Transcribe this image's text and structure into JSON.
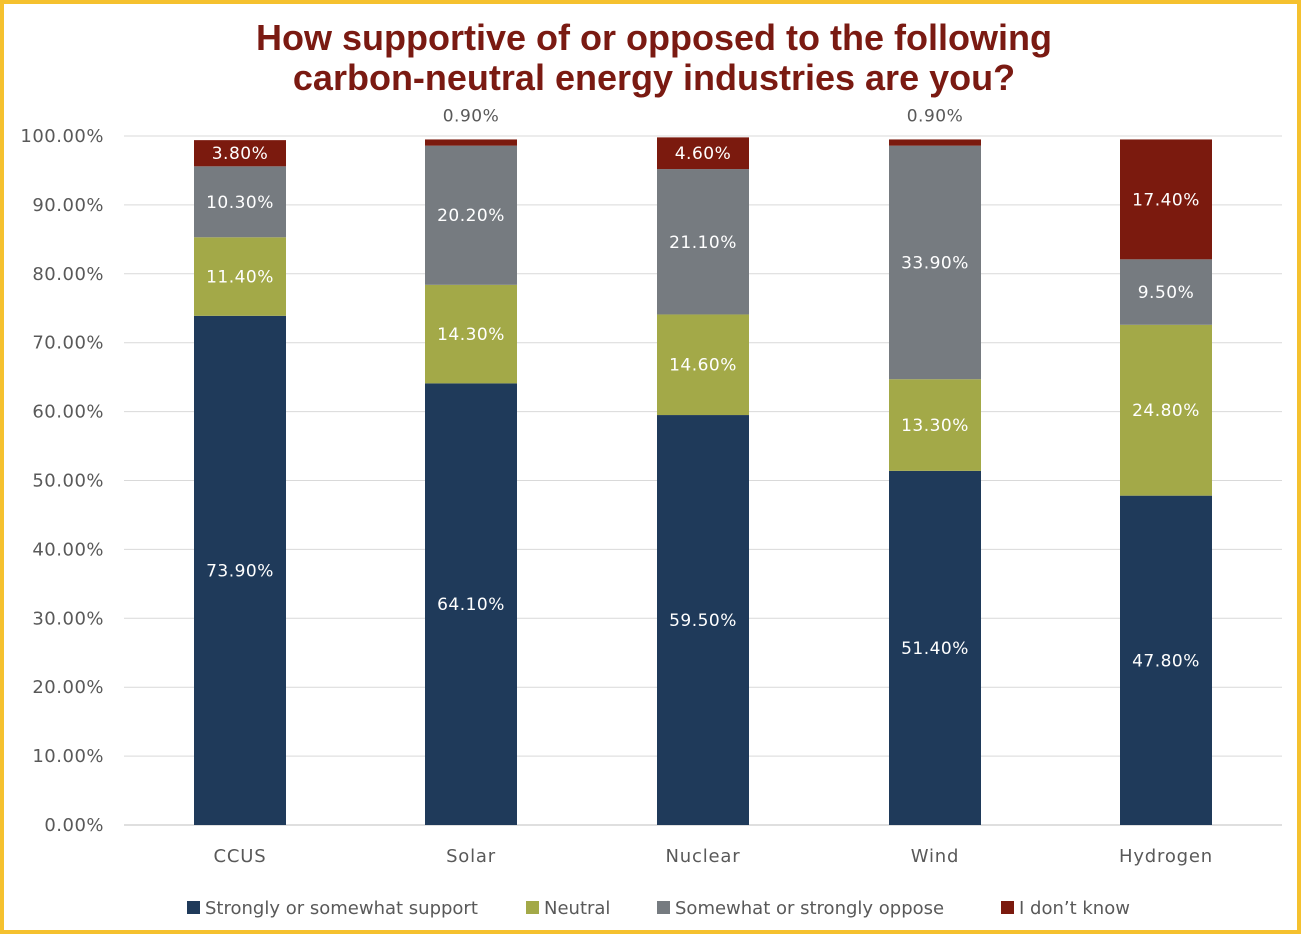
{
  "chart_data": {
    "type": "bar",
    "stacked": true,
    "title": "How supportive of or opposed to the following carbon-neutral energy industries are you?",
    "title_lines": [
      "How supportive of or opposed to the following",
      "carbon-neutral energy industries are you?"
    ],
    "categories": [
      "CCUS",
      "Solar",
      "Nuclear",
      "Wind",
      "Hydrogen"
    ],
    "series": [
      {
        "name": "Strongly or somewhat support",
        "color": "#1f3a5a",
        "values": [
          73.9,
          64.1,
          59.5,
          51.4,
          47.8
        ],
        "labels": [
          "73.90%",
          "64.10%",
          "59.50%",
          "51.40%",
          "47.80%"
        ]
      },
      {
        "name": "Neutral",
        "color": "#a3a948",
        "values": [
          11.4,
          14.3,
          14.6,
          13.3,
          24.8
        ],
        "labels": [
          "11.40%",
          "14.30%",
          "14.60%",
          "13.30%",
          "24.80%"
        ]
      },
      {
        "name": "Somewhat or strongly oppose",
        "color": "#767b80",
        "values": [
          10.3,
          20.2,
          21.1,
          33.9,
          9.5
        ],
        "labels": [
          "10.30%",
          "20.20%",
          "21.10%",
          "33.90%",
          "9.50%"
        ]
      },
      {
        "name": "I don't know",
        "color": "#7b1a0e",
        "values": [
          3.8,
          0.9,
          4.6,
          0.9,
          17.4
        ],
        "labels": [
          "3.80%",
          "0.90%",
          "4.60%",
          "0.90%",
          "17.40%"
        ]
      }
    ],
    "ylim": [
      0,
      100
    ],
    "yticks": [
      0,
      10,
      20,
      30,
      40,
      50,
      60,
      70,
      80,
      90,
      100
    ],
    "ytick_labels": [
      "0.00%",
      "10.00%",
      "20.00%",
      "30.00%",
      "40.00%",
      "50.00%",
      "60.00%",
      "70.00%",
      "80.00%",
      "90.00%",
      "100.00%"
    ],
    "xlabel": "",
    "ylabel": "",
    "grid": true,
    "legend": "bottom",
    "legend_labels": [
      "Strongly or somewhat support",
      "Neutral",
      "Somewhat or strongly oppose",
      "I don’t know"
    ]
  },
  "colors": {
    "border": "#f5c12e",
    "title": "#7a1a12",
    "grid": "#d9d9d9",
    "text": "#595959"
  }
}
